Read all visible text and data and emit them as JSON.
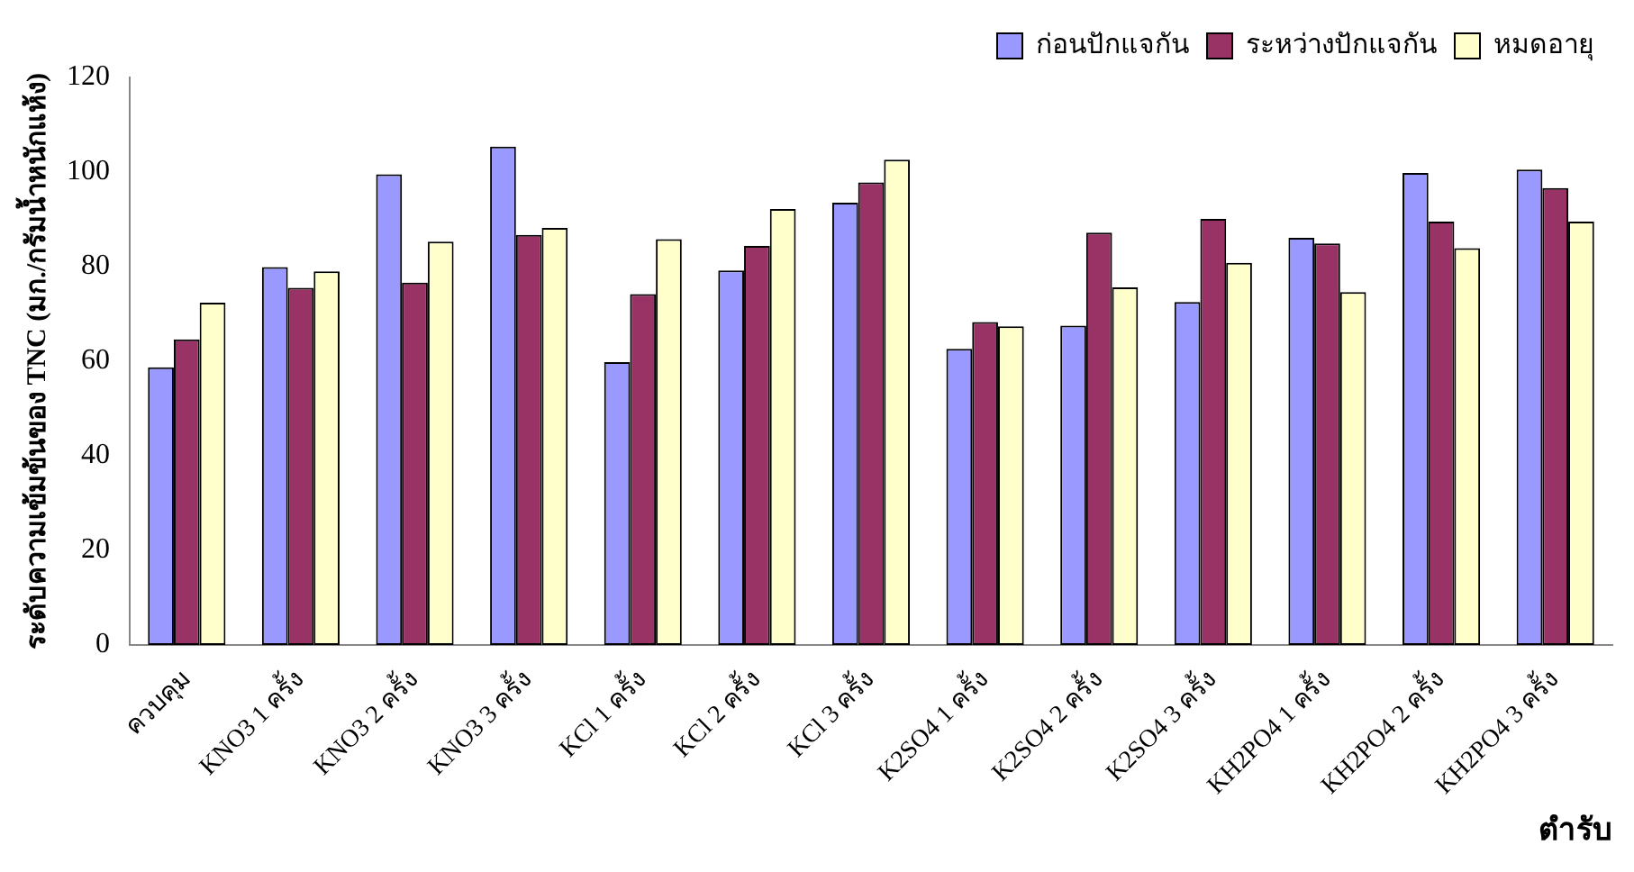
{
  "chart_data": {
    "type": "bar",
    "xlabel": "ตำรับ",
    "ylabel": "ระดับความเข้มข้นของ TNC (มก./กรัมน้ำหนักแห้ง)",
    "categories": [
      "ควบคุม",
      "KNO3 1 ครั้ง",
      "KNO3 2 ครั้ง",
      "KNO3 3 ครั้ง",
      "KCl 1 ครั้ง",
      "KCl 2 ครั้ง",
      "KCl 3 ครั้ง",
      "K2SO4 1 ครั้ง",
      "K2SO4 2 ครั้ง",
      "K2SO4 3 ครั้ง",
      "KH2PO4 1 ครั้ง",
      "KH2PO4 2 ครั้ง",
      "KH2PO4 3 ครั้ง"
    ],
    "series": [
      {
        "name": "ก่อนปักแจกัน",
        "color": "#9999ff",
        "values": [
          58.7,
          79.9,
          99.5,
          105.4,
          59.8,
          79.2,
          93.5,
          62.6,
          67.5,
          72.5,
          86.1,
          99.8,
          100.5
        ]
      },
      {
        "name": "ระหว่างปักแจกัน",
        "color": "#993366",
        "values": [
          64.6,
          75.5,
          76.6,
          86.7,
          74.2,
          84.4,
          97.8,
          68.3,
          87.2,
          90.1,
          84.9,
          89.5,
          96.6
        ]
      },
      {
        "name": "หมดอายุ",
        "color": "#ffffcc",
        "values": [
          72.4,
          79.0,
          85.3,
          88.2,
          85.8,
          92.2,
          102.6,
          67.4,
          75.6,
          80.8,
          74.6,
          83.9,
          89.5
        ]
      }
    ],
    "ylim": [
      0,
      120
    ],
    "yticks": [
      0,
      20,
      40,
      60,
      80,
      100,
      120
    ],
    "grid": false,
    "legend": "top right"
  }
}
